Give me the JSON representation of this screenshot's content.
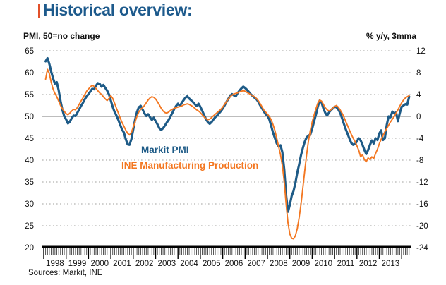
{
  "title": {
    "text": "Historical overview:",
    "color": "#1d5a8c",
    "accent_color": "#e2502a"
  },
  "sources": "Sources: Markit, INE",
  "chart_data": {
    "type": "line",
    "title": "Historical overview:",
    "left_axis": {
      "label": "PMI, 50=no change",
      "ticks": [
        65,
        60,
        55,
        50,
        45,
        40,
        35,
        30,
        25,
        20
      ],
      "range": [
        20,
        65
      ]
    },
    "right_axis": {
      "label": "% y/y, 3mma",
      "ticks": [
        12,
        8,
        4,
        0,
        -4,
        -8,
        -12,
        -16,
        -20,
        -24
      ],
      "range": [
        -24,
        12
      ]
    },
    "x_axis": {
      "year_labels": [
        "1998",
        "1999",
        "2000",
        "2001",
        "2002",
        "2003",
        "2004",
        "2005",
        "2006",
        "2007",
        "2008",
        "2009",
        "2010",
        "2011",
        "2012",
        "2013"
      ],
      "data_start": "1998-02",
      "data_end": "2014-05",
      "frequency": "monthly"
    },
    "grid": {
      "solid_line_at": 50,
      "dotted": true,
      "legend_position": "inside-left"
    },
    "series": [
      {
        "name": "Markit PMI",
        "axis": "left",
        "color": "#1e5b87",
        "width": 3.2,
        "data_name": "markit-pmi-line",
        "values": [
          62.6,
          63.3,
          62.0,
          60.2,
          58.7,
          57.5,
          57.8,
          56.0,
          53.5,
          51.5,
          50.0,
          49.3,
          48.4,
          48.8,
          49.6,
          50.2,
          50.1,
          50.8,
          51.6,
          52.4,
          53.1,
          53.9,
          54.6,
          55.1,
          55.7,
          56.3,
          56.2,
          57.0,
          57.6,
          57.4,
          56.8,
          57.2,
          56.5,
          55.9,
          55.0,
          53.6,
          52.2,
          51.0,
          50.2,
          49.2,
          48.1,
          47.0,
          46.3,
          44.8,
          43.6,
          43.5,
          44.8,
          47.0,
          49.2,
          51.0,
          52.1,
          52.4,
          51.6,
          50.7,
          50.1,
          50.5,
          49.8,
          49.2,
          49.7,
          48.9,
          48.2,
          47.3,
          46.9,
          47.3,
          47.9,
          48.6,
          49.2,
          50.0,
          50.8,
          51.7,
          52.4,
          52.9,
          52.4,
          53.1,
          53.7,
          54.3,
          54.6,
          54.1,
          53.7,
          53.3,
          52.8,
          52.4,
          52.9,
          52.2,
          51.3,
          50.3,
          49.4,
          48.7,
          48.3,
          48.7,
          49.3,
          49.8,
          50.2,
          50.7,
          51.2,
          51.8,
          52.5,
          53.3,
          54.0,
          54.7,
          55.1,
          54.8,
          54.6,
          55.3,
          55.9,
          56.4,
          56.8,
          56.5,
          56.1,
          55.6,
          55.1,
          54.7,
          54.3,
          54.0,
          53.4,
          52.6,
          51.9,
          51.2,
          50.5,
          50.2,
          49.3,
          47.8,
          46.3,
          45.0,
          43.8,
          43.2,
          43.4,
          41.8,
          37.8,
          32.0,
          28.2,
          29.8,
          31.8,
          33.0,
          34.8,
          37.2,
          39.0,
          41.2,
          42.8,
          44.2,
          45.2,
          45.6,
          45.9,
          47.2,
          48.8,
          50.4,
          52.2,
          53.6,
          53.2,
          51.8,
          50.8,
          50.2,
          50.9,
          51.4,
          51.8,
          52.2,
          52.1,
          51.6,
          50.8,
          49.6,
          48.3,
          47.1,
          46.0,
          44.9,
          43.9,
          43.5,
          43.7,
          44.3,
          45.0,
          44.5,
          43.5,
          42.3,
          41.4,
          42.3,
          43.5,
          44.5,
          43.8,
          45.0,
          44.6,
          46.1,
          46.8,
          44.6,
          45.0,
          48.1,
          50.0,
          49.8,
          51.1,
          50.7,
          50.9,
          48.9,
          50.8,
          52.2,
          52.5,
          52.8,
          52.7,
          54.5
        ]
      },
      {
        "name": "INE Manufacturing Production",
        "axis": "right",
        "color": "#f37721",
        "width": 1.9,
        "data_name": "ine-production-line",
        "values": [
          6.8,
          8.6,
          7.8,
          6.2,
          5.0,
          4.2,
          3.6,
          2.8,
          2.0,
          1.4,
          0.9,
          0.5,
          0.3,
          0.6,
          1.0,
          1.3,
          1.2,
          1.6,
          2.2,
          2.8,
          3.4,
          4.0,
          4.6,
          5.0,
          5.4,
          5.7,
          5.5,
          5.1,
          4.7,
          4.3,
          4.0,
          3.6,
          3.2,
          2.9,
          3.3,
          3.8,
          3.3,
          2.4,
          1.5,
          0.6,
          -0.3,
          -1.1,
          -1.8,
          -2.5,
          -3.1,
          -3.4,
          -2.9,
          -2.0,
          -1.0,
          0.0,
          0.8,
          1.3,
          1.6,
          2.0,
          2.5,
          3.0,
          3.4,
          3.6,
          3.5,
          3.2,
          2.7,
          2.1,
          1.5,
          1.0,
          0.7,
          0.6,
          0.8,
          1.1,
          1.3,
          1.5,
          1.6,
          1.7,
          1.8,
          1.9,
          2.1,
          2.2,
          2.3,
          2.2,
          2.0,
          1.8,
          1.5,
          1.2,
          1.0,
          0.7,
          0.3,
          -0.1,
          -0.4,
          -0.6,
          -0.5,
          -0.2,
          0.1,
          0.4,
          0.7,
          1.0,
          1.3,
          1.7,
          2.2,
          2.7,
          3.2,
          3.6,
          3.9,
          4.1,
          4.2,
          4.3,
          4.5,
          4.6,
          4.7,
          4.6,
          4.4,
          4.2,
          4.0,
          3.8,
          3.6,
          3.3,
          2.9,
          2.4,
          1.8,
          1.2,
          0.8,
          0.4,
          0.0,
          -0.6,
          -1.5,
          -2.6,
          -4.0,
          -5.5,
          -7.0,
          -9.0,
          -12.0,
          -16.0,
          -19.5,
          -21.5,
          -22.3,
          -22.4,
          -21.8,
          -20.5,
          -18.5,
          -16.0,
          -13.0,
          -10.0,
          -7.0,
          -4.5,
          -2.5,
          -1.0,
          0.2,
          1.4,
          2.4,
          3.0,
          2.8,
          2.2,
          1.6,
          1.2,
          1.0,
          1.2,
          1.5,
          1.8,
          2.0,
          1.7,
          1.2,
          0.6,
          -0.1,
          -0.9,
          -1.7,
          -2.5,
          -3.3,
          -4.0,
          -4.6,
          -5.4,
          -6.2,
          -7.4,
          -7.0,
          -7.9,
          -8.3,
          -7.6,
          -7.9,
          -7.4,
          -7.7,
          -6.8,
          -6.0,
          -5.0,
          -4.2,
          -3.5,
          -2.8,
          -2.2,
          -1.6,
          -1.0,
          -0.5,
          0.0,
          0.6,
          1.2,
          1.9,
          2.5,
          3.0,
          3.4,
          3.6,
          3.8
        ]
      }
    ]
  }
}
